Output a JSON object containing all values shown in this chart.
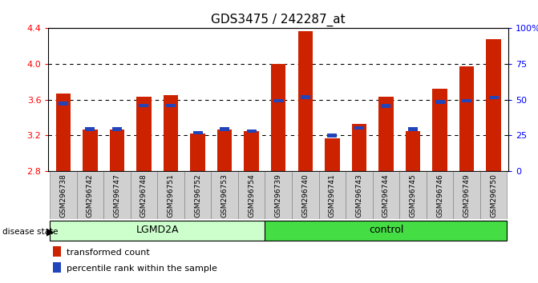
{
  "title": "GDS3475 / 242287_at",
  "samples": [
    "GSM296738",
    "GSM296742",
    "GSM296747",
    "GSM296748",
    "GSM296751",
    "GSM296752",
    "GSM296753",
    "GSM296754",
    "GSM296739",
    "GSM296740",
    "GSM296741",
    "GSM296743",
    "GSM296744",
    "GSM296745",
    "GSM296746",
    "GSM296749",
    "GSM296750"
  ],
  "red_values": [
    3.67,
    3.27,
    3.27,
    3.63,
    3.65,
    3.22,
    3.27,
    3.25,
    4.0,
    4.37,
    3.17,
    3.33,
    3.63,
    3.25,
    3.72,
    3.97,
    4.28
  ],
  "blue_values": [
    3.555,
    3.27,
    3.27,
    3.535,
    3.535,
    3.23,
    3.27,
    3.25,
    3.59,
    3.63,
    3.2,
    3.285,
    3.53,
    3.27,
    3.575,
    3.59,
    3.625
  ],
  "ymin": 2.8,
  "ymax": 4.4,
  "yticks_left": [
    2.8,
    3.2,
    3.6,
    4.0,
    4.4
  ],
  "yticks_right_pct": [
    0,
    25,
    50,
    75,
    100
  ],
  "yticks_right_labels": [
    "0",
    "25",
    "50",
    "75",
    "100%"
  ],
  "bar_color": "#cc2200",
  "blue_color": "#2244bb",
  "bar_width": 0.55,
  "lgmd2a_count": 8,
  "control_count": 9,
  "lgmd2a_color": "#ccffcc",
  "control_color": "#44dd44",
  "grid_levels": [
    3.2,
    3.6,
    4.0
  ],
  "legend_items": [
    {
      "label": "transformed count",
      "color": "#cc2200"
    },
    {
      "label": "percentile rank within the sample",
      "color": "#2244bb"
    }
  ]
}
